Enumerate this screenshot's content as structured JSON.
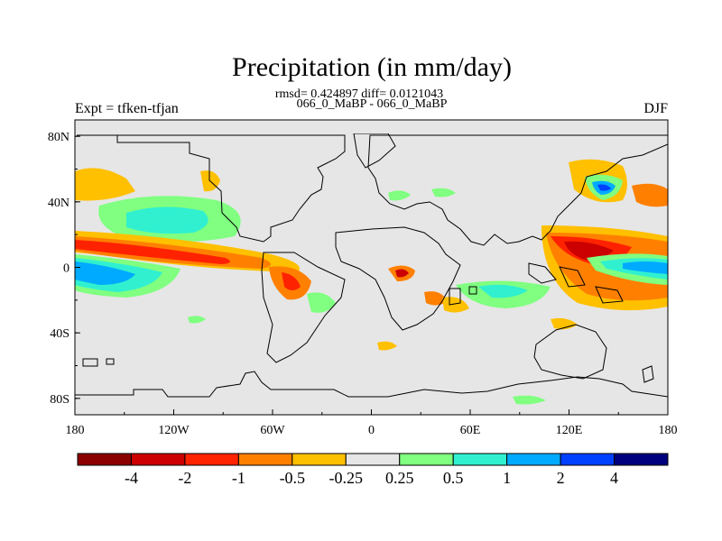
{
  "figure": {
    "title": "Precipitation (in mm/day)",
    "stats_line": "rmsd= 0.424897 diff= 0.0121043",
    "case_line": "066_0_MaBP - 066_0_MaBP",
    "left_label": "Expt = tfken-tfjan",
    "right_label": "DJF"
  },
  "map": {
    "projection": "cylindrical-equidistant",
    "background_color": "#e6e6e6",
    "coastline_color": "#000000",
    "x_ticks": [
      "180",
      "120W",
      "60W",
      "0",
      "60E",
      "120E",
      "180"
    ],
    "y_ticks": [
      "80N",
      "40N",
      "0",
      "40S",
      "80S"
    ]
  },
  "colorbar": {
    "labels": [
      "-4",
      "-2",
      "-1",
      "-0.5",
      "-0.25",
      "0.25",
      "0.5",
      "1",
      "2",
      "4"
    ],
    "colors": [
      "#8b0000",
      "#cc0000",
      "#ff2200",
      "#ff8000",
      "#ffc000",
      "#e6e6e6",
      "#80ff80",
      "#30f0d0",
      "#00aaff",
      "#0040ff",
      "#00007f"
    ]
  }
}
